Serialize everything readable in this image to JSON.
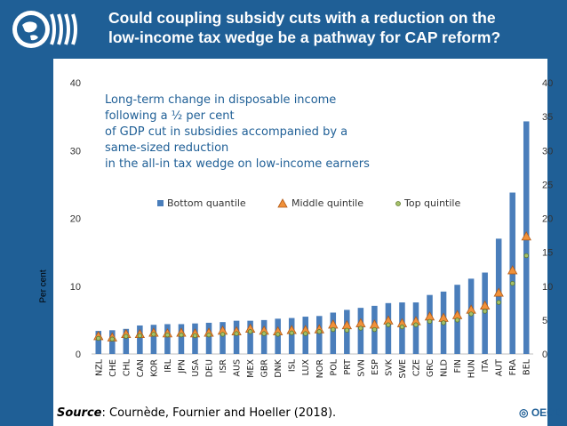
{
  "header": {
    "title_line1": "Could coupling subsidy cuts with a reduction on the",
    "title_line2": "low-income tax wedge be a pathway for CAP reform?"
  },
  "annotation": {
    "line1": "Long-term change in disposable income following a ½ per cent",
    "line2": "of GDP cut in subsidies accompanied by a same-sized reduction",
    "line3": "in the all-in tax wedge on low-income earners"
  },
  "footer": {
    "source_label": "Source",
    "source_text": ": Cournède, Fournier and Hoeller (2018).",
    "brand": "OECD"
  },
  "colors": {
    "background": "#1f5f96",
    "bar": "#4a7ebb",
    "triangle_fill": "#f0913a",
    "triangle_stroke": "#b35a16",
    "dot_fill": "#a6c16a",
    "dot_stroke": "#5e7a2c"
  },
  "chart_data": {
    "type": "bar",
    "title": "Long-term change in disposable income following a ½ per cent of GDP cut in subsidies accompanied by a same-sized reduction in the all-in tax wedge on low-income earners",
    "ylabel": "Per cent",
    "ylim_left": [
      0,
      40
    ],
    "yticks_left": [
      0,
      10,
      20,
      30,
      40
    ],
    "ylim_right": [
      0,
      40
    ],
    "yticks_right": [
      0,
      5,
      10,
      15,
      20,
      25,
      30,
      35,
      40
    ],
    "categories": [
      "NZL",
      "CHE",
      "CHL",
      "CAN",
      "KOR",
      "IRL",
      "JPN",
      "USA",
      "DEU",
      "ISR",
      "AUS",
      "MEX",
      "GBR",
      "DNK",
      "ISL",
      "LUX",
      "NOR",
      "POL",
      "PRT",
      "SVN",
      "ESP",
      "SVK",
      "SWE",
      "CZE",
      "GRC",
      "NLD",
      "FIN",
      "HUN",
      "ITA",
      "AUT",
      "FRA",
      "BEL"
    ],
    "legend": [
      "Bottom quantile",
      "Middle quintile",
      "Top quintile"
    ],
    "series": [
      {
        "name": "Bottom quantile",
        "kind": "bar",
        "values": [
          3.4,
          3.5,
          3.7,
          4.2,
          4.3,
          4.4,
          4.4,
          4.5,
          4.6,
          4.7,
          4.9,
          4.9,
          5.0,
          5.2,
          5.3,
          5.5,
          5.6,
          6.1,
          6.5,
          6.8,
          7.1,
          7.5,
          7.6,
          7.6,
          8.7,
          9.2,
          10.2,
          11.1,
          12.0,
          17.0,
          23.8,
          34.3
        ]
      },
      {
        "name": "Middle quintile",
        "kind": "triangle",
        "values": [
          2.5,
          2.3,
          2.8,
          2.8,
          3.0,
          2.9,
          3.0,
          2.9,
          3.0,
          3.3,
          3.2,
          3.6,
          3.3,
          3.2,
          3.4,
          3.4,
          3.5,
          4.2,
          4.1,
          4.4,
          4.2,
          4.8,
          4.4,
          4.7,
          5.4,
          5.2,
          5.6,
          6.4,
          7.0,
          8.9,
          12.2,
          17.2
        ]
      },
      {
        "name": "Top quintile",
        "kind": "dot",
        "values": [
          2.3,
          2.2,
          2.6,
          2.7,
          2.9,
          2.8,
          2.8,
          2.7,
          2.8,
          2.9,
          3.0,
          3.3,
          3.0,
          2.9,
          3.1,
          3.0,
          3.3,
          3.6,
          3.5,
          3.8,
          3.6,
          4.3,
          4.0,
          4.3,
          4.8,
          4.6,
          5.0,
          5.9,
          6.3,
          7.6,
          10.4,
          14.5
        ]
      }
    ]
  }
}
